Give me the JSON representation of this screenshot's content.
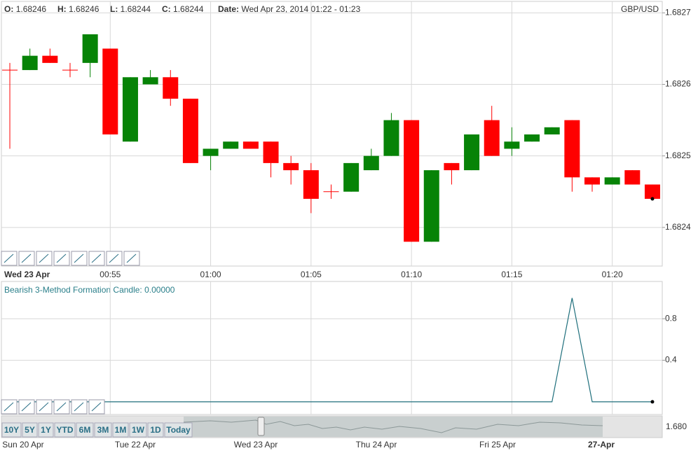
{
  "header": {
    "items": [
      {
        "label": "O:",
        "value": 1.68246
      },
      {
        "label": "H:",
        "value": 1.68246
      },
      {
        "label": "L:",
        "value": 1.68244
      },
      {
        "label": "C:",
        "value": 1.68244
      }
    ],
    "date_label": "Date:",
    "date": "Wed Apr 23, 2014 01:22 - 01:23",
    "symbol": "GBP/USD"
  },
  "chart_data": [
    {
      "type": "candlestick",
      "x_date_label": "Wed 23 Apr",
      "x": [
        50,
        51,
        52,
        53,
        54,
        55,
        56,
        57,
        58,
        59,
        60,
        61,
        62,
        63,
        64,
        65,
        66,
        67,
        68,
        69,
        70,
        71,
        72,
        73,
        74,
        75,
        76,
        77,
        78,
        79,
        80,
        81,
        82
      ],
      "open": [
        1.68262,
        1.68262,
        1.68264,
        1.68262,
        1.68263,
        1.68265,
        1.68252,
        1.6826,
        1.68261,
        1.68258,
        1.6825,
        1.68251,
        1.68252,
        1.68252,
        1.68249,
        1.68248,
        1.68245,
        1.68245,
        1.68248,
        1.6825,
        1.68255,
        1.68238,
        1.68249,
        1.68248,
        1.68255,
        1.68251,
        1.68252,
        1.68253,
        1.68255,
        1.68247,
        1.68246,
        1.68248,
        1.68246
      ],
      "high": [
        1.68263,
        1.68265,
        1.68265,
        1.68263,
        1.68267,
        1.68265,
        1.68261,
        1.68262,
        1.68262,
        1.68258,
        1.68251,
        1.68252,
        1.68252,
        1.68252,
        1.6825,
        1.68249,
        1.68246,
        1.68249,
        1.68251,
        1.68256,
        1.68255,
        1.68248,
        1.68249,
        1.68253,
        1.68257,
        1.68254,
        1.68253,
        1.68254,
        1.68255,
        1.68247,
        1.68247,
        1.68248,
        1.68246
      ],
      "low": [
        1.68251,
        1.68262,
        1.68263,
        1.68261,
        1.68261,
        1.68253,
        1.68252,
        1.6826,
        1.68257,
        1.68249,
        1.68248,
        1.68251,
        1.68251,
        1.68247,
        1.68246,
        1.68242,
        1.68244,
        1.68245,
        1.68248,
        1.6825,
        1.68238,
        1.68238,
        1.68246,
        1.68248,
        1.6825,
        1.6825,
        1.68252,
        1.68253,
        1.68245,
        1.68245,
        1.68246,
        1.68246,
        1.68244
      ],
      "close": [
        1.68262,
        1.68264,
        1.68263,
        1.68262,
        1.68267,
        1.68253,
        1.68261,
        1.68261,
        1.68258,
        1.68249,
        1.68251,
        1.68252,
        1.68251,
        1.68249,
        1.68248,
        1.68244,
        1.68245,
        1.68249,
        1.6825,
        1.68255,
        1.68238,
        1.68248,
        1.68248,
        1.68253,
        1.6825,
        1.68252,
        1.68253,
        1.68254,
        1.68247,
        1.68246,
        1.68247,
        1.68246,
        1.68244
      ],
      "up_color": "#078307",
      "down_color": "#ff0000",
      "xlim": [
        49.58,
        82.49
      ],
      "xticks": [
        {
          "value": 55,
          "label": "00:55"
        },
        {
          "value": 60,
          "label": "01:00"
        },
        {
          "value": 65,
          "label": "01:05"
        },
        {
          "value": 70,
          "label": "01:10"
        },
        {
          "value": 75,
          "label": "01:15"
        },
        {
          "value": 80,
          "label": "01:20"
        }
      ],
      "ylim": [
        1.682346,
        1.682716
      ],
      "yticks": [
        1.6824,
        1.6825,
        1.6826,
        1.6827
      ],
      "grid": true
    },
    {
      "type": "line",
      "title": "Bearish 3-Method Formation Candle: 0.00000",
      "x": [
        50,
        51,
        52,
        53,
        54,
        55,
        56,
        57,
        58,
        59,
        60,
        61,
        62,
        63,
        64,
        65,
        66,
        67,
        68,
        69,
        70,
        71,
        72,
        73,
        74,
        75,
        76,
        77,
        78,
        79,
        80,
        81,
        82
      ],
      "values": [
        0,
        0,
        0,
        0,
        0,
        0,
        0,
        0,
        0,
        0,
        0,
        0,
        0,
        0,
        0,
        0,
        0,
        0,
        0,
        0,
        0,
        0,
        0,
        0,
        0,
        0,
        0,
        0,
        1,
        0,
        0,
        0,
        0
      ],
      "color": "#1f6f7c",
      "xlim": [
        49.58,
        82.49
      ],
      "xticks": [
        55,
        60,
        65,
        70,
        75,
        80
      ],
      "ylim": [
        -0.122,
        1.159
      ],
      "yticks": [
        0.4,
        0.8
      ],
      "grid": true
    }
  ],
  "navigator": {
    "buttons": [
      "10Y",
      "5Y",
      "1Y",
      "YTD",
      "6M",
      "3M",
      "1M",
      "1W",
      "1D",
      "Today"
    ],
    "price_label": "1.680",
    "dates": [
      "Sun 20 Apr",
      "Tue 22 Apr",
      "Wed 23 Apr",
      "Thu 24 Apr",
      "Fri 25 Apr",
      "27-Apr"
    ]
  }
}
